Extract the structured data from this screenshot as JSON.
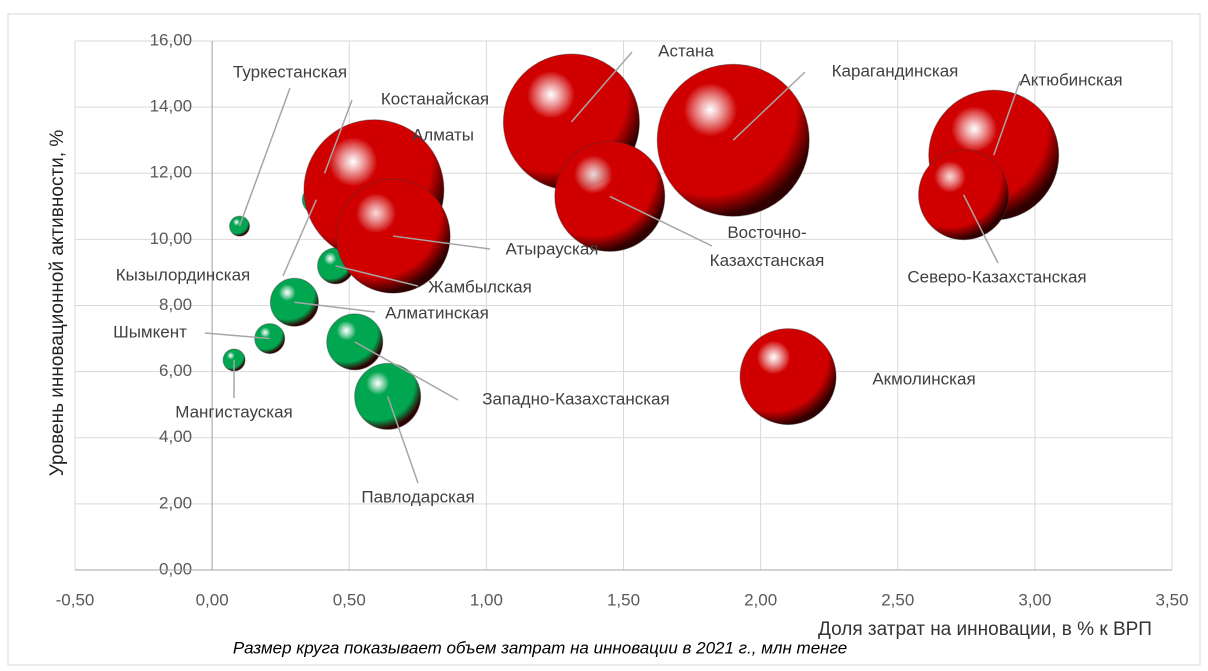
{
  "chart_data": {
    "type": "bubble",
    "x_label": "Доля затрат на инновации, в % к ВРП",
    "y_label": "Уровень инновационной активности, %",
    "note": "Размер круга показывает объем затрат на инновации в 2021 г.,  млн тенге",
    "xlim": [
      -0.5,
      3.5
    ],
    "xticks": [
      {
        "value": -0.5,
        "label": "-0,50"
      },
      {
        "value": 0,
        "label": "0,00"
      },
      {
        "value": 0.5,
        "label": "0,50"
      },
      {
        "value": 1,
        "label": "1,00"
      },
      {
        "value": 1.5,
        "label": "1,50"
      },
      {
        "value": 2,
        "label": "2,00"
      },
      {
        "value": 2.5,
        "label": "2,50"
      },
      {
        "value": 3,
        "label": "3,00"
      },
      {
        "value": 3.5,
        "label": "3,50"
      }
    ],
    "ylim": [
      0,
      16
    ],
    "yticks": [
      {
        "value": 0,
        "label": "0,00"
      },
      {
        "value": 2,
        "label": "2,00"
      },
      {
        "value": 4,
        "label": "4,00"
      },
      {
        "value": 6,
        "label": "6,00"
      },
      {
        "value": 8,
        "label": "8,00"
      },
      {
        "value": 10,
        "label": "10,00"
      },
      {
        "value": 12,
        "label": "12,00"
      },
      {
        "value": 14,
        "label": "14,00"
      },
      {
        "value": 16,
        "label": "16,00"
      }
    ],
    "grid": true,
    "points": [
      {
        "label": "Туркестанская",
        "x": 0.1,
        "y": 10.4,
        "size": 100,
        "color": "#00a650"
      },
      {
        "label": "Костанайская",
        "x": 0.41,
        "y": 12.0,
        "size": 225,
        "color": "#00a650"
      },
      {
        "label": "Кызылординская",
        "x": 0.38,
        "y": 11.2,
        "size": 196,
        "color": "#00a650"
      },
      {
        "label": "Жамбылская",
        "x": 0.45,
        "y": 9.2,
        "size": 324,
        "color": "#00a650"
      },
      {
        "label": "Алматинская",
        "x": 0.3,
        "y": 8.1,
        "size": 576,
        "color": "#00a650"
      },
      {
        "label": "Шымкент",
        "x": 0.21,
        "y": 7.0,
        "size": 225,
        "color": "#00a650"
      },
      {
        "label": "Мангистауская",
        "x": 0.08,
        "y": 6.35,
        "size": 121,
        "color": "#00a650"
      },
      {
        "label": "Западно-Казахстанская",
        "x": 0.52,
        "y": 6.9,
        "size": 784,
        "color": "#00a650"
      },
      {
        "label": "Павлодарская",
        "x": 0.64,
        "y": 5.25,
        "size": 1089,
        "color": "#00a650"
      },
      {
        "label": "Алматы",
        "x": 0.59,
        "y": 11.5,
        "size": 4900,
        "color": "#d00000"
      },
      {
        "label": "Атырауская",
        "x": 0.66,
        "y": 10.1,
        "size": 3249,
        "color": "#d00000"
      },
      {
        "label": "Астана",
        "x": 1.31,
        "y": 13.55,
        "size": 4624,
        "color": "#d00000"
      },
      {
        "label": "Восточно-Казахстанская",
        "x": 1.45,
        "y": 11.3,
        "size": 3025,
        "color": "#d00000"
      },
      {
        "label": "Карагандинская",
        "x": 1.9,
        "y": 13.0,
        "size": 5776,
        "color": "#d00000"
      },
      {
        "label": "Актюбинская",
        "x": 2.85,
        "y": 12.55,
        "size": 4225,
        "color": "#d00000"
      },
      {
        "label": "Северо-Казахстанская",
        "x": 2.74,
        "y": 11.35,
        "size": 2025,
        "color": "#d00000"
      },
      {
        "label": "Акмолинская",
        "x": 2.1,
        "y": 5.85,
        "size": 2304,
        "color": "#d00000"
      }
    ]
  }
}
